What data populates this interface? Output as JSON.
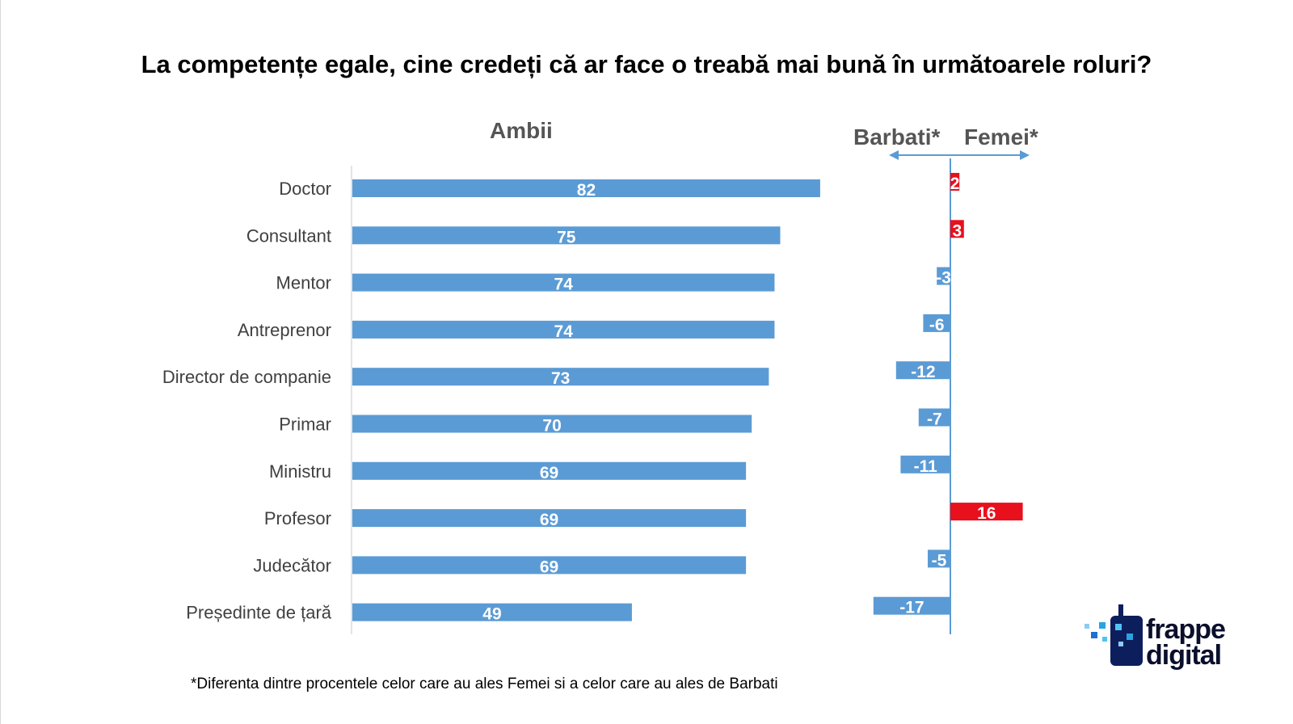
{
  "title": "La competențe egale, cine credeți că ar face o treabă mai bună în următoarele roluri?",
  "left_heading": "Ambii",
  "right_heading_left": "Barbati*",
  "right_heading_right": "Femei*",
  "footnote": "*Diferenta dintre procentele celor care au ales Femei si a celor care au ales de Barbati",
  "logo": {
    "line1": "frappe",
    "line2": "digital"
  },
  "colors": {
    "blue": "#5b9bd5",
    "red": "#e8101d",
    "axis": "#5b9bd5"
  },
  "chart_data": [
    {
      "type": "bar",
      "orientation": "horizontal",
      "title": "Ambii",
      "categories": [
        "Doctor",
        "Consultant",
        "Mentor",
        "Antreprenor",
        "Director de companie",
        "Primar",
        "Ministru",
        "Profesor",
        "Judecător",
        "Președinte de țară"
      ],
      "values": [
        82,
        75,
        74,
        74,
        73,
        70,
        69,
        69,
        69,
        49
      ],
      "xlim": [
        0,
        100
      ],
      "grid": false
    },
    {
      "type": "bar",
      "orientation": "horizontal",
      "title": "",
      "axis_labels": [
        "Barbati*",
        "Femei*"
      ],
      "categories": [
        "Doctor",
        "Consultant",
        "Mentor",
        "Antreprenor",
        "Director de companie",
        "Primar",
        "Ministru",
        "Profesor",
        "Judecător",
        "Președinte de țară"
      ],
      "values": [
        2,
        3,
        -3,
        -6,
        -12,
        -7,
        -11,
        16,
        -5,
        -17
      ],
      "xlim": [
        -17,
        16
      ],
      "grid": false
    }
  ]
}
